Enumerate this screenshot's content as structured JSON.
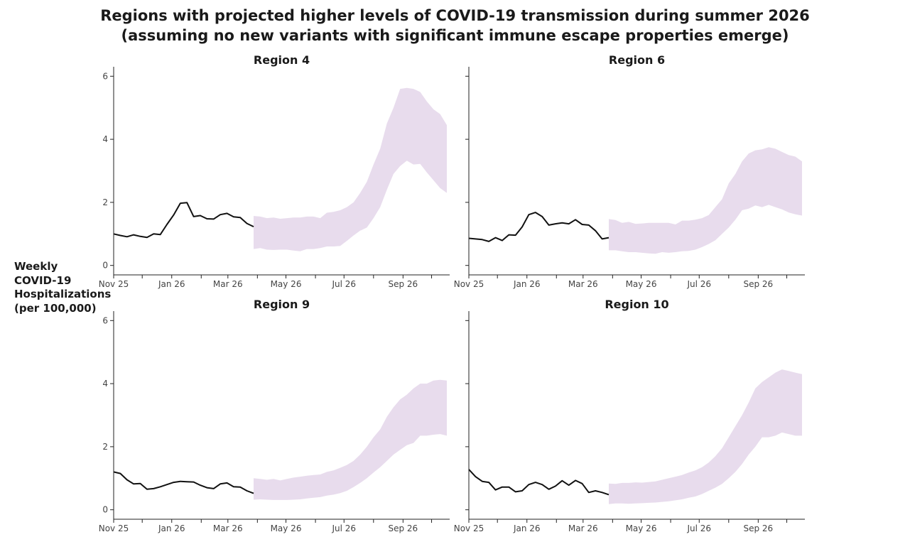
{
  "title_line1": "Regions with projected higher levels of COVID-19 transmission during summer 2026",
  "title_line2": "(assuming no new variants with significant immune escape properties emerge)",
  "ylabel_lines": [
    "Weekly",
    "COVID-19",
    "Hospitalizations",
    "(per 100,000)"
  ],
  "colors": {
    "observed": "#111111",
    "projection_band": "#e8dced"
  },
  "chart_data": {
    "type": "line",
    "x_axis": {
      "start": "2025-11-01",
      "end": "2026-10-20",
      "ticks": [
        "Nov 25",
        "Jan 26",
        "Mar 26",
        "May 26",
        "Jul 26",
        "Sep 26"
      ]
    },
    "y_axis": {
      "ylim": [
        -0.3,
        6.3
      ],
      "ticks": [
        "0",
        "2",
        "4",
        "6"
      ],
      "shared": true
    },
    "panels": [
      {
        "title": "Region 4",
        "observed": {
          "x": [
            "2025-11-01",
            "2025-11-08",
            "2025-11-15",
            "2025-11-22",
            "2025-11-29",
            "2025-12-06",
            "2025-12-13",
            "2025-12-20",
            "2025-12-27",
            "2026-01-03",
            "2026-01-10",
            "2026-01-17",
            "2026-01-24",
            "2026-01-31",
            "2026-02-07",
            "2026-02-14",
            "2026-02-21",
            "2026-02-28",
            "2026-03-07",
            "2026-03-14",
            "2026-03-21",
            "2026-03-28"
          ],
          "y": [
            1.0,
            0.95,
            0.91,
            0.97,
            0.92,
            0.89,
            1.0,
            0.98,
            1.3,
            1.6,
            1.97,
            1.99,
            1.55,
            1.58,
            1.48,
            1.47,
            1.61,
            1.65,
            1.54,
            1.52,
            1.33,
            1.23
          ]
        },
        "projection": {
          "x": [
            "2026-03-28",
            "2026-04-04",
            "2026-04-11",
            "2026-04-18",
            "2026-04-25",
            "2026-05-02",
            "2026-05-09",
            "2026-05-16",
            "2026-05-23",
            "2026-05-30",
            "2026-06-06",
            "2026-06-13",
            "2026-06-20",
            "2026-06-27",
            "2026-07-04",
            "2026-07-11",
            "2026-07-18",
            "2026-07-25",
            "2026-08-01",
            "2026-08-08",
            "2026-08-15",
            "2026-08-22",
            "2026-08-29",
            "2026-09-05",
            "2026-09-12",
            "2026-09-19",
            "2026-09-26",
            "2026-10-03",
            "2026-10-10",
            "2026-10-17"
          ],
          "lower": [
            0.52,
            0.55,
            0.5,
            0.49,
            0.5,
            0.5,
            0.47,
            0.45,
            0.52,
            0.52,
            0.55,
            0.6,
            0.6,
            0.62,
            0.78,
            0.95,
            1.1,
            1.2,
            1.5,
            1.85,
            2.4,
            2.9,
            3.15,
            3.32,
            3.2,
            3.22,
            2.95,
            2.7,
            2.45,
            2.3
          ],
          "upper": [
            1.57,
            1.55,
            1.5,
            1.52,
            1.48,
            1.5,
            1.52,
            1.52,
            1.55,
            1.55,
            1.5,
            1.67,
            1.7,
            1.75,
            1.85,
            2.0,
            2.3,
            2.65,
            3.2,
            3.7,
            4.5,
            5.0,
            5.6,
            5.63,
            5.6,
            5.5,
            5.2,
            4.95,
            4.8,
            4.45
          ]
        }
      },
      {
        "title": "Region 6",
        "observed": {
          "x": [
            "2025-11-01",
            "2025-11-08",
            "2025-11-15",
            "2025-11-22",
            "2025-11-29",
            "2025-12-06",
            "2025-12-13",
            "2025-12-20",
            "2025-12-27",
            "2026-01-03",
            "2026-01-10",
            "2026-01-17",
            "2026-01-24",
            "2026-01-31",
            "2026-02-07",
            "2026-02-14",
            "2026-02-21",
            "2026-02-28",
            "2026-03-07",
            "2026-03-14",
            "2026-03-21",
            "2026-03-28"
          ],
          "y": [
            0.86,
            0.84,
            0.82,
            0.76,
            0.88,
            0.79,
            0.97,
            0.96,
            1.22,
            1.61,
            1.68,
            1.55,
            1.28,
            1.32,
            1.35,
            1.32,
            1.45,
            1.3,
            1.28,
            1.1,
            0.84,
            0.88
          ]
        },
        "projection": {
          "x": [
            "2026-03-28",
            "2026-04-04",
            "2026-04-11",
            "2026-04-18",
            "2026-04-25",
            "2026-05-02",
            "2026-05-09",
            "2026-05-16",
            "2026-05-23",
            "2026-05-30",
            "2026-06-06",
            "2026-06-13",
            "2026-06-20",
            "2026-06-27",
            "2026-07-04",
            "2026-07-11",
            "2026-07-18",
            "2026-07-25",
            "2026-08-01",
            "2026-08-08",
            "2026-08-15",
            "2026-08-22",
            "2026-08-29",
            "2026-09-05",
            "2026-09-12",
            "2026-09-19",
            "2026-09-26",
            "2026-10-03",
            "2026-10-10",
            "2026-10-17"
          ],
          "lower": [
            0.48,
            0.48,
            0.45,
            0.42,
            0.42,
            0.4,
            0.38,
            0.37,
            0.42,
            0.4,
            0.42,
            0.45,
            0.46,
            0.5,
            0.58,
            0.68,
            0.8,
            1.0,
            1.2,
            1.45,
            1.75,
            1.8,
            1.9,
            1.85,
            1.92,
            1.85,
            1.78,
            1.68,
            1.62,
            1.58
          ],
          "upper": [
            1.47,
            1.44,
            1.35,
            1.38,
            1.32,
            1.33,
            1.35,
            1.35,
            1.35,
            1.35,
            1.3,
            1.42,
            1.42,
            1.45,
            1.5,
            1.6,
            1.85,
            2.1,
            2.6,
            2.9,
            3.3,
            3.55,
            3.65,
            3.68,
            3.75,
            3.7,
            3.6,
            3.5,
            3.45,
            3.3
          ]
        }
      },
      {
        "title": "Region 9",
        "observed": {
          "x": [
            "2025-11-01",
            "2025-11-08",
            "2025-11-15",
            "2025-11-22",
            "2025-11-29",
            "2025-12-06",
            "2025-12-13",
            "2025-12-20",
            "2025-12-27",
            "2026-01-03",
            "2026-01-10",
            "2026-01-17",
            "2026-01-24",
            "2026-01-31",
            "2026-02-07",
            "2026-02-14",
            "2026-02-21",
            "2026-02-28",
            "2026-03-07",
            "2026-03-14",
            "2026-03-21",
            "2026-03-28"
          ],
          "y": [
            1.2,
            1.15,
            0.95,
            0.82,
            0.83,
            0.65,
            0.67,
            0.73,
            0.8,
            0.87,
            0.9,
            0.89,
            0.88,
            0.78,
            0.7,
            0.67,
            0.82,
            0.85,
            0.73,
            0.72,
            0.6,
            0.52
          ]
        },
        "projection": {
          "x": [
            "2026-03-28",
            "2026-04-04",
            "2026-04-11",
            "2026-04-18",
            "2026-04-25",
            "2026-05-02",
            "2026-05-09",
            "2026-05-16",
            "2026-05-23",
            "2026-05-30",
            "2026-06-06",
            "2026-06-13",
            "2026-06-20",
            "2026-06-27",
            "2026-07-04",
            "2026-07-11",
            "2026-07-18",
            "2026-07-25",
            "2026-08-01",
            "2026-08-08",
            "2026-08-15",
            "2026-08-22",
            "2026-08-29",
            "2026-09-05",
            "2026-09-12",
            "2026-09-19",
            "2026-09-26",
            "2026-10-03",
            "2026-10-10",
            "2026-10-17"
          ],
          "lower": [
            0.32,
            0.33,
            0.32,
            0.31,
            0.31,
            0.31,
            0.32,
            0.33,
            0.36,
            0.38,
            0.4,
            0.45,
            0.48,
            0.53,
            0.6,
            0.72,
            0.85,
            1.0,
            1.18,
            1.35,
            1.55,
            1.75,
            1.9,
            2.05,
            2.12,
            2.35,
            2.35,
            2.38,
            2.4,
            2.35
          ],
          "upper": [
            1.0,
            0.98,
            0.95,
            0.98,
            0.93,
            0.98,
            1.02,
            1.05,
            1.08,
            1.1,
            1.12,
            1.2,
            1.25,
            1.33,
            1.42,
            1.55,
            1.75,
            2.0,
            2.3,
            2.55,
            2.95,
            3.25,
            3.5,
            3.65,
            3.85,
            4.0,
            4.0,
            4.1,
            4.12,
            4.1
          ]
        }
      },
      {
        "title": "Region 10",
        "observed": {
          "x": [
            "2025-11-01",
            "2025-11-08",
            "2025-11-15",
            "2025-11-22",
            "2025-11-29",
            "2025-12-06",
            "2025-12-13",
            "2025-12-20",
            "2025-12-27",
            "2026-01-03",
            "2026-01-10",
            "2026-01-17",
            "2026-01-24",
            "2026-01-31",
            "2026-02-07",
            "2026-02-14",
            "2026-02-21",
            "2026-02-28",
            "2026-03-07",
            "2026-03-14",
            "2026-03-21",
            "2026-03-28"
          ],
          "y": [
            1.28,
            1.05,
            0.9,
            0.87,
            0.63,
            0.72,
            0.72,
            0.57,
            0.6,
            0.8,
            0.87,
            0.8,
            0.65,
            0.75,
            0.92,
            0.78,
            0.93,
            0.83,
            0.55,
            0.6,
            0.55,
            0.48
          ]
        },
        "projection": {
          "x": [
            "2026-03-28",
            "2026-04-04",
            "2026-04-11",
            "2026-04-18",
            "2026-04-25",
            "2026-05-02",
            "2026-05-09",
            "2026-05-16",
            "2026-05-23",
            "2026-05-30",
            "2026-06-06",
            "2026-06-13",
            "2026-06-20",
            "2026-06-27",
            "2026-07-04",
            "2026-07-11",
            "2026-07-18",
            "2026-07-25",
            "2026-08-01",
            "2026-08-08",
            "2026-08-15",
            "2026-08-22",
            "2026-08-29",
            "2026-09-05",
            "2026-09-12",
            "2026-09-19",
            "2026-09-26",
            "2026-10-03",
            "2026-10-10",
            "2026-10-17"
          ],
          "lower": [
            0.18,
            0.2,
            0.2,
            0.19,
            0.2,
            0.21,
            0.22,
            0.23,
            0.25,
            0.27,
            0.3,
            0.33,
            0.38,
            0.42,
            0.5,
            0.6,
            0.7,
            0.82,
            1.0,
            1.2,
            1.45,
            1.75,
            2.0,
            2.3,
            2.3,
            2.35,
            2.45,
            2.4,
            2.35,
            2.35
          ],
          "upper": [
            0.83,
            0.82,
            0.85,
            0.85,
            0.87,
            0.86,
            0.88,
            0.9,
            0.95,
            1.0,
            1.05,
            1.1,
            1.18,
            1.25,
            1.35,
            1.5,
            1.7,
            1.95,
            2.3,
            2.65,
            3.0,
            3.4,
            3.85,
            4.05,
            4.2,
            4.35,
            4.45,
            4.4,
            4.35,
            4.3
          ]
        }
      }
    ]
  }
}
